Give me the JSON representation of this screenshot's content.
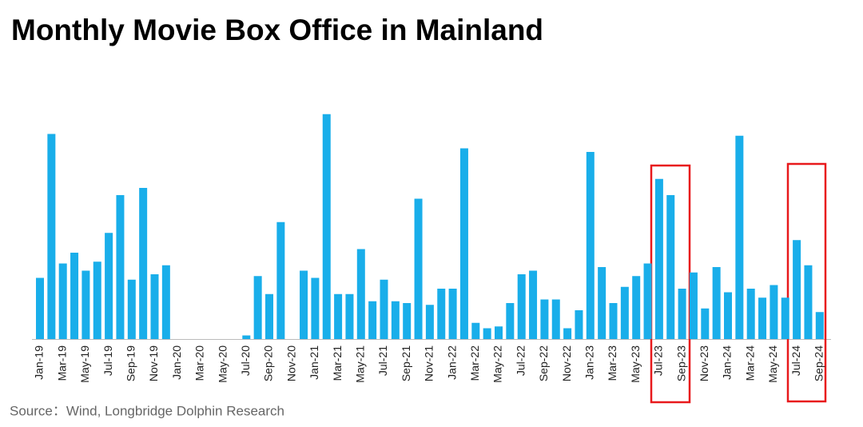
{
  "chart_data": {
    "type": "bar",
    "title": "Monthly Movie Box Office in Mainland",
    "source": "Source：Wind, Longbridge Dolphin Research",
    "color": "#19aeea",
    "categories": [
      "Jan-19",
      null,
      "Mar-19",
      null,
      "May-19",
      null,
      "Jul-19",
      null,
      "Sep-19",
      null,
      "Nov-19",
      null,
      "Jan-20",
      null,
      "Mar-20",
      null,
      "May-20",
      null,
      "Jul-20",
      null,
      "Sep-20",
      null,
      "Nov-20",
      null,
      "Jan-21",
      null,
      "Mar-21",
      null,
      "May-21",
      null,
      "Jul-21",
      null,
      "Sep-21",
      null,
      "Nov-21",
      null,
      "Jan-22",
      null,
      "Mar-22",
      null,
      "May-22",
      null,
      "Jul-22",
      null,
      "Sep-22",
      null,
      "Nov-22",
      null,
      "Jan-23",
      null,
      "Mar-23",
      null,
      "May-23",
      null,
      "Jul-23",
      null,
      "Sep-23",
      null,
      "Nov-23",
      null,
      "Jan-24",
      null,
      "Mar-24",
      null,
      "May-24",
      null,
      "Jul-24",
      null,
      "Sep-24"
    ],
    "values": [
      3.4,
      11.4,
      4.2,
      4.8,
      3.8,
      4.3,
      5.9,
      8.0,
      3.3,
      8.4,
      3.6,
      4.1,
      0,
      0,
      0,
      0,
      0,
      0,
      0.2,
      3.5,
      2.5,
      6.5,
      0,
      3.8,
      3.4,
      12.5,
      2.5,
      2.5,
      5.0,
      2.1,
      3.3,
      2.1,
      2.0,
      7.8,
      1.9,
      2.8,
      2.8,
      10.6,
      0.9,
      0.6,
      0.7,
      2.0,
      3.6,
      3.8,
      2.2,
      2.2,
      0.6,
      1.6,
      10.4,
      4.0,
      2.0,
      2.9,
      3.5,
      4.2,
      8.9,
      8.0,
      2.8,
      3.7,
      1.7,
      4.0,
      2.6,
      11.3,
      2.8,
      2.3,
      3.0,
      2.3,
      5.5,
      4.1,
      1.5
    ]
  }
}
